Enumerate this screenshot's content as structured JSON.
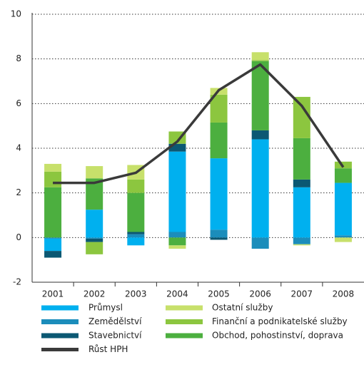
{
  "chart_data": {
    "type": "bar",
    "stacked": true,
    "categories": [
      "2001",
      "2002",
      "2003",
      "2004",
      "2005",
      "2006",
      "2007",
      "2008"
    ],
    "series": [
      {
        "name": "Průmysl",
        "color": "#00b0ef",
        "values": [
          -0.55,
          1.25,
          -0.35,
          3.6,
          3.2,
          4.4,
          2.25,
          2.35
        ]
      },
      {
        "name": "Zemědělství",
        "color": "#1b8dbb",
        "values": [
          -0.05,
          -0.05,
          0.15,
          0.25,
          0.35,
          -0.5,
          -0.3,
          0.1
        ]
      },
      {
        "name": "Stavebnictví",
        "color": "#0b5873",
        "values": [
          -0.3,
          -0.15,
          0.1,
          0.35,
          -0.1,
          0.4,
          0.35,
          0
        ]
      },
      {
        "name": "Růst HPH",
        "color": "#3a3a3a",
        "type": "line",
        "values": [
          2.45,
          2.45,
          2.9,
          4.3,
          6.6,
          7.75,
          5.9,
          3.15
        ]
      },
      {
        "name": "Ostatní služby",
        "color": "#c7e06b",
        "values": [
          0.35,
          0.55,
          0.65,
          -0.15,
          0.3,
          0.35,
          -0.05,
          -0.2
        ]
      },
      {
        "name": "Finanční a podnikatelské služby",
        "color": "#8cc63f",
        "values": [
          0.7,
          -0.55,
          0.6,
          0.55,
          1.25,
          0.05,
          1.85,
          0.3
        ]
      },
      {
        "name": "Obchod, pohostinství, doprava",
        "color": "#4caf3f",
        "values": [
          2.25,
          1.4,
          1.75,
          -0.35,
          1.6,
          3.1,
          1.85,
          0.65
        ]
      }
    ],
    "ylim": [
      -2,
      10
    ],
    "yticks": [
      -2,
      0,
      2,
      4,
      6,
      8,
      10
    ],
    "grid": true
  }
}
